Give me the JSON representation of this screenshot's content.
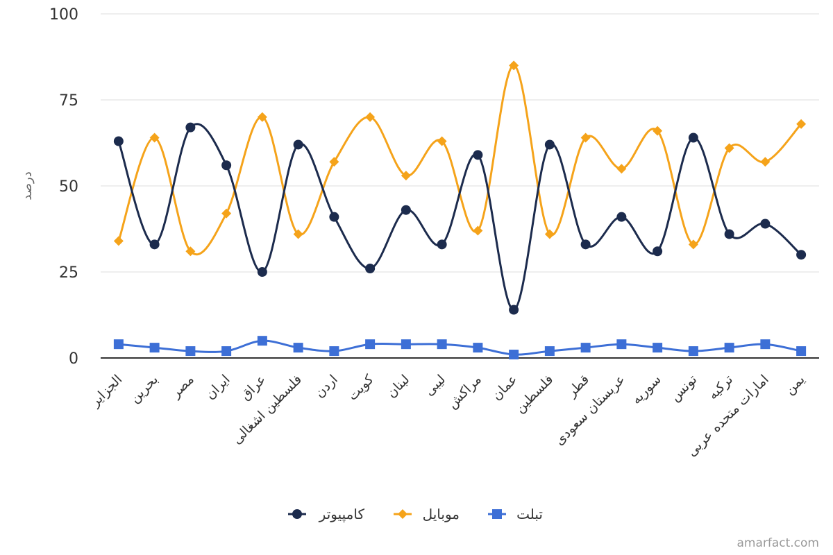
{
  "chart_data": {
    "type": "line",
    "title": "",
    "xlabel": "",
    "ylabel": "درصد",
    "ylim": [
      0,
      100
    ],
    "yticks": [
      0,
      25,
      50,
      75,
      100
    ],
    "grid": true,
    "legend_position": "bottom",
    "categories": [
      "الجزایر",
      "بحرین",
      "مصر",
      "ایران",
      "عراق",
      "فلسطین اشغالی",
      "اردن",
      "کویت",
      "لبنان",
      "لیبی",
      "مراکش",
      "عمان",
      "فلسطین",
      "قطر",
      "عربستان سعودی",
      "سوریه",
      "تونس",
      "ترکیه",
      "امارات متحده عربی",
      "یمن"
    ],
    "series": [
      {
        "name": "کامپیوتر",
        "color": "#1c2b4d",
        "marker": "circle",
        "values": [
          63,
          33,
          67,
          56,
          25,
          62,
          41,
          26,
          43,
          33,
          59,
          14,
          62,
          33,
          41,
          31,
          64,
          36,
          39,
          30
        ]
      },
      {
        "name": "موبایل",
        "color": "#f5a31a",
        "marker": "diamond",
        "values": [
          34,
          64,
          31,
          42,
          70,
          36,
          57,
          70,
          53,
          63,
          37,
          85,
          36,
          64,
          55,
          66,
          33,
          61,
          57,
          68
        ]
      },
      {
        "name": "تبلت",
        "color": "#3d6fd6",
        "marker": "square",
        "values": [
          4,
          3,
          2,
          2,
          5,
          3,
          2,
          4,
          4,
          4,
          3,
          1,
          2,
          3,
          4,
          3,
          2,
          3,
          4,
          2
        ]
      }
    ]
  },
  "credit": "amarfact.com"
}
